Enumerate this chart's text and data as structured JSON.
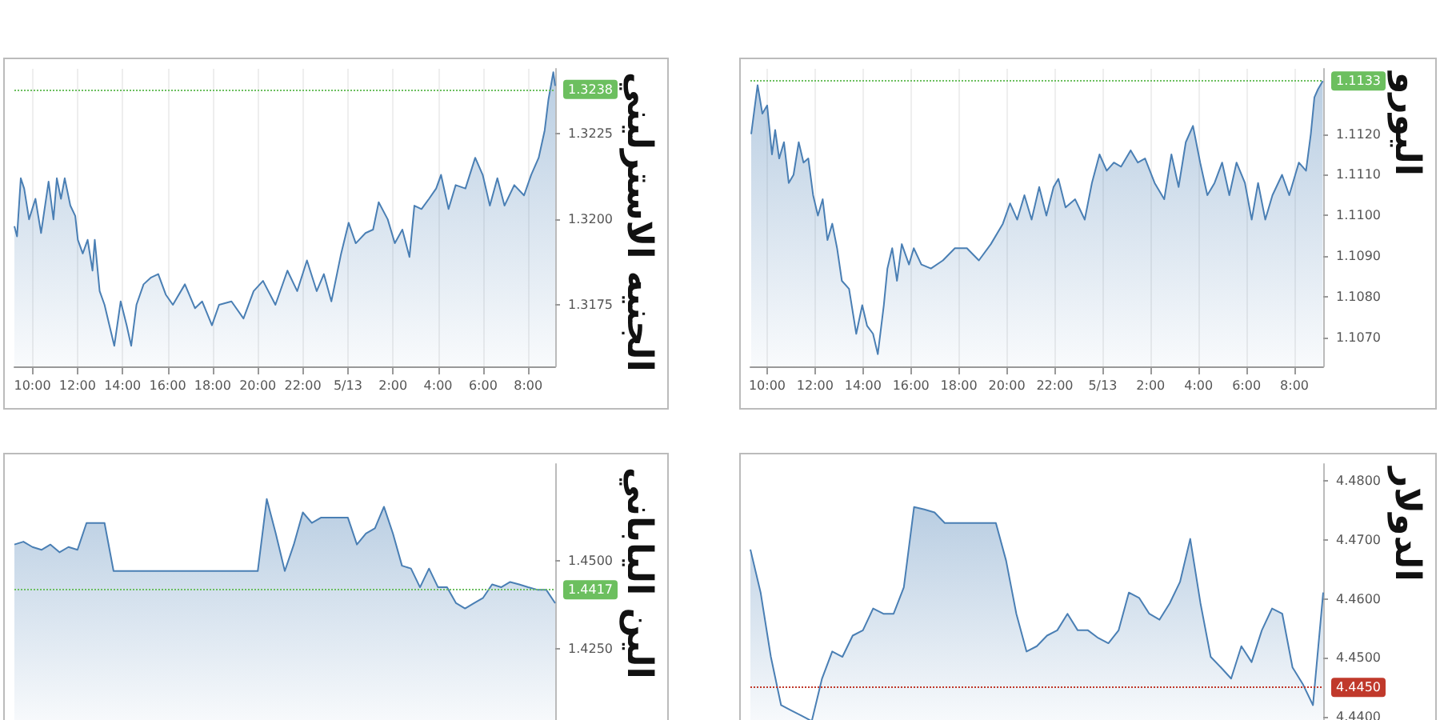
{
  "chart_data": [
    {
      "type": "area",
      "title": "الجنيه الاسترليني",
      "grid": "x",
      "marker": "none",
      "xlim": [
        "--05-12T09:12",
        "--05-13T09:12"
      ],
      "xticks": [
        {
          "value": "--05-12T10:00",
          "label": "10:00"
        },
        {
          "value": "--05-12T12:00",
          "label": "12:00"
        },
        {
          "value": "--05-12T14:00",
          "label": "14:00"
        },
        {
          "value": "--05-12T16:00",
          "label": "16:00"
        },
        {
          "value": "--05-12T18:00",
          "label": "18:00"
        },
        {
          "value": "--05-12T20:00",
          "label": "20:00"
        },
        {
          "value": "--05-12T22:00",
          "label": "22:00"
        },
        {
          "value": "--05-13T00:00",
          "label": "5/13"
        },
        {
          "value": "--05-13T02:00",
          "label": "2:00"
        },
        {
          "value": "--05-13T04:00",
          "label": "4:00"
        },
        {
          "value": "--05-13T06:00",
          "label": "6:00"
        },
        {
          "value": "--05-13T08:00",
          "label": "8:00"
        }
      ],
      "ylim": [
        1.3157,
        1.3244
      ],
      "yticks": [
        1.3175,
        {
          "value": 1.32,
          "label": "1.3200"
        },
        1.3225
      ],
      "x": [
        "--05-12T09:12",
        "--05-12T09:19",
        "--05-12T09:29",
        "--05-12T09:38",
        "--05-12T09:51",
        "--05-12T10:08",
        "--05-12T10:23",
        "--05-12T10:43",
        "--05-12T10:56",
        "--05-12T11:05",
        "--05-12T11:16",
        "--05-12T11:26",
        "--05-12T11:41",
        "--05-12T11:54",
        "--05-12T12:01",
        "--05-12T12:14",
        "--05-12T12:27",
        "--05-12T12:40",
        "--05-12T12:46",
        "--05-12T12:59",
        "--05-12T13:12",
        "--05-12T13:25",
        "--05-12T13:38",
        "--05-12T13:55",
        "--05-12T14:11",
        "--05-12T14:23",
        "--05-12T14:37",
        "--05-12T14:56",
        "--05-12T15:16",
        "--05-12T15:35",
        "--05-12T15:55",
        "--05-12T16:14",
        "--05-12T16:46",
        "--05-12T17:13",
        "--05-12T17:32",
        "--05-12T17:58",
        "--05-12T18:17",
        "--05-12T18:50",
        "--05-12T19:22",
        "--05-12T19:49",
        "--05-12T20:14",
        "--05-12T20:47",
        "--05-12T21:19",
        "--05-12T21:45",
        "--05-12T22:11",
        "--05-12T22:37",
        "--05-12T22:56",
        "--05-12T23:16",
        "--05-12T23:42",
        "--05-13T00:02",
        "--05-13T00:21",
        "--05-13T00:47",
        "--05-13T01:07",
        "--05-13T01:22",
        "--05-13T01:46",
        "--05-13T02:05",
        "--05-13T02:25",
        "--05-13T02:44",
        "--05-13T02:57",
        "--05-13T03:16",
        "--05-13T03:36",
        "--05-13T03:55",
        "--05-13T04:08",
        "--05-13T04:28",
        "--05-13T04:47",
        "--05-13T05:13",
        "--05-13T05:39",
        "--05-13T05:59",
        "--05-13T06:18",
        "--05-13T06:38",
        "--05-13T06:57",
        "--05-13T07:23",
        "--05-13T07:49",
        "--05-13T08:08",
        "--05-13T08:28",
        "--05-13T08:44",
        "--05-13T08:54",
        "--05-13T09:07",
        "--05-13T09:12"
      ],
      "series": [
        {
          "color": "#4a7fb4",
          "values": [
            1.3198,
            1.3195,
            1.3212,
            1.3209,
            1.32,
            1.3206,
            1.3196,
            1.3211,
            1.32,
            1.3212,
            1.3206,
            1.3212,
            1.3204,
            1.3201,
            1.3194,
            1.319,
            1.3194,
            1.3185,
            1.3194,
            1.3179,
            1.3175,
            1.3169,
            1.3163,
            1.3176,
            1.3169,
            1.3163,
            1.3175,
            1.3181,
            1.3183,
            1.3184,
            1.3178,
            1.3175,
            1.3181,
            1.3174,
            1.3176,
            1.3169,
            1.3175,
            1.3176,
            1.3171,
            1.3179,
            1.3182,
            1.3175,
            1.3185,
            1.3179,
            1.3188,
            1.3179,
            1.3184,
            1.3176,
            1.319,
            1.3199,
            1.3193,
            1.3196,
            1.3197,
            1.3205,
            1.32,
            1.3193,
            1.3197,
            1.3189,
            1.3204,
            1.3203,
            1.3206,
            1.3209,
            1.3213,
            1.3203,
            1.321,
            1.3209,
            1.3218,
            1.3213,
            1.3204,
            1.3212,
            1.3204,
            1.321,
            1.3207,
            1.3213,
            1.3218,
            1.3226,
            1.3235,
            1.3243,
            1.3239
          ]
        }
      ],
      "ref_lines": [
        {
          "axis": "y",
          "value": 1.3238,
          "label": "1.3238",
          "color": "#6cbf5f",
          "line_style": "dotted"
        }
      ]
    },
    {
      "type": "area",
      "title": "اليورو",
      "grid": "x",
      "marker": "none",
      "xlim": [
        "--05-12T09:18",
        "--05-13T09:12"
      ],
      "xticks": [
        {
          "value": "--05-12T10:00",
          "label": "10:00"
        },
        {
          "value": "--05-12T12:00",
          "label": "12:00"
        },
        {
          "value": "--05-12T14:00",
          "label": "14:00"
        },
        {
          "value": "--05-12T16:00",
          "label": "16:00"
        },
        {
          "value": "--05-12T18:00",
          "label": "18:00"
        },
        {
          "value": "--05-12T20:00",
          "label": "20:00"
        },
        {
          "value": "--05-12T22:00",
          "label": "22:00"
        },
        {
          "value": "--05-13T00:00",
          "label": "5/13"
        },
        {
          "value": "--05-13T02:00",
          "label": "2:00"
        },
        {
          "value": "--05-13T04:00",
          "label": "4:00"
        },
        {
          "value": "--05-13T06:00",
          "label": "6:00"
        },
        {
          "value": "--05-13T08:00",
          "label": "8:00"
        }
      ],
      "ylim": [
        1.1063,
        1.1136
      ],
      "yticks": [
        {
          "value": 1.107,
          "label": "1.1070"
        },
        {
          "value": 1.108,
          "label": "1.1080"
        },
        {
          "value": 1.109,
          "label": "1.1090"
        },
        {
          "value": 1.11,
          "label": "1.1100"
        },
        {
          "value": 1.111,
          "label": "1.1110"
        },
        {
          "value": 1.112,
          "label": "1.1120"
        }
      ],
      "x": [
        "--05-12T09:20",
        "--05-12T09:28",
        "--05-12T09:36",
        "--05-12T09:48",
        "--05-12T10:00",
        "--05-12T10:12",
        "--05-12T10:20",
        "--05-12T10:30",
        "--05-12T10:42",
        "--05-12T10:54",
        "--05-12T11:06",
        "--05-12T11:19",
        "--05-12T11:31",
        "--05-12T11:43",
        "--05-12T11:55",
        "--05-12T12:07",
        "--05-12T12:19",
        "--05-12T12:31",
        "--05-12T12:43",
        "--05-12T12:55",
        "--05-12T13:07",
        "--05-12T13:25",
        "--05-12T13:43",
        "--05-12T13:58",
        "--05-12T14:10",
        "--05-12T14:25",
        "--05-12T14:37",
        "--05-12T14:52",
        "--05-12T15:01",
        "--05-12T15:13",
        "--05-12T15:25",
        "--05-12T15:37",
        "--05-12T15:55",
        "--05-12T16:07",
        "--05-12T16:26",
        "--05-12T16:50",
        "--05-12T17:20",
        "--05-12T17:50",
        "--05-12T18:20",
        "--05-12T18:50",
        "--05-12T19:20",
        "--05-12T19:50",
        "--05-12T20:08",
        "--05-12T20:26",
        "--05-12T20:44",
        "--05-12T21:02",
        "--05-12T21:21",
        "--05-12T21:39",
        "--05-12T21:57",
        "--05-12T22:09",
        "--05-12T22:27",
        "--05-12T22:51",
        "--05-12T23:15",
        "--05-12T23:33",
        "--05-12T23:52",
        "--05-13T00:10",
        "--05-13T00:28",
        "--05-13T00:46",
        "--05-13T01:10",
        "--05-13T01:28",
        "--05-13T01:46",
        "--05-13T02:10",
        "--05-13T02:34",
        "--05-13T02:52",
        "--05-13T03:10",
        "--05-13T03:28",
        "--05-13T03:46",
        "--05-13T04:04",
        "--05-13T04:22",
        "--05-13T04:40",
        "--05-13T04:59",
        "--05-13T05:17",
        "--05-13T05:35",
        "--05-13T05:56",
        "--05-13T06:13",
        "--05-13T06:29",
        "--05-13T06:47",
        "--05-13T07:05",
        "--05-13T07:29",
        "--05-13T07:47",
        "--05-13T08:11",
        "--05-13T08:29",
        "--05-13T08:41",
        "--05-13T08:50",
        "--05-13T08:59",
        "--05-13T09:11"
      ],
      "series": [
        {
          "color": "#4a7fb4",
          "values": [
            1.112,
            1.1126,
            1.1132,
            1.1125,
            1.1127,
            1.1115,
            1.1121,
            1.1114,
            1.1118,
            1.1108,
            1.111,
            1.1118,
            1.1113,
            1.1114,
            1.1105,
            1.11,
            1.1104,
            1.1094,
            1.1098,
            1.1092,
            1.1084,
            1.1082,
            1.1071,
            1.1078,
            1.1073,
            1.1071,
            1.1066,
            1.1078,
            1.1087,
            1.1092,
            1.1084,
            1.1093,
            1.1088,
            1.1092,
            1.1088,
            1.1087,
            1.1089,
            1.1092,
            1.1092,
            1.1089,
            1.1093,
            1.1098,
            1.1103,
            1.1099,
            1.1105,
            1.1099,
            1.1107,
            1.11,
            1.1107,
            1.1109,
            1.1102,
            1.1104,
            1.1099,
            1.1108,
            1.1115,
            1.1111,
            1.1113,
            1.1112,
            1.1116,
            1.1113,
            1.1114,
            1.1108,
            1.1104,
            1.1115,
            1.1107,
            1.1118,
            1.1122,
            1.1113,
            1.1105,
            1.1108,
            1.1113,
            1.1105,
            1.1113,
            1.1108,
            1.1099,
            1.1108,
            1.1099,
            1.1105,
            1.111,
            1.1105,
            1.1113,
            1.1111,
            1.112,
            1.1129,
            1.1131,
            1.1133
          ]
        }
      ],
      "ref_lines": [
        {
          "axis": "y",
          "value": 1.1133,
          "label": "1.1133",
          "color": "#6cbf5f",
          "line_style": "dotted"
        }
      ]
    },
    {
      "type": "area",
      "title": "الين الياباني",
      "marker": "none",
      "tick_labels": "y",
      "categories": [
        null,
        null,
        null,
        null,
        null,
        null,
        null,
        null,
        null,
        null,
        null,
        null,
        null,
        null,
        null,
        null,
        null,
        null,
        null,
        null,
        null,
        null,
        null,
        null,
        null,
        null,
        null,
        null,
        null,
        null,
        null,
        null,
        null,
        null,
        null,
        null,
        null,
        null,
        null,
        null,
        null,
        null,
        null,
        null,
        null,
        null,
        null,
        null,
        null,
        null,
        null,
        null,
        null,
        null,
        null,
        null,
        null,
        null,
        null,
        null,
        null
      ],
      "ylim": [
        1.403,
        1.4773
      ],
      "yticks": [
        {
          "value": 1.425,
          "label": "1.4250"
        },
        {
          "value": 1.45,
          "label": "1.4500"
        }
      ],
      "series": [
        {
          "color": "#4a7fb4",
          "values": [
            1.4545,
            1.4553,
            1.4538,
            1.453,
            1.4545,
            1.4523,
            1.4538,
            1.453,
            1.4606,
            1.4606,
            1.4606,
            1.447,
            1.447,
            1.447,
            1.447,
            1.447,
            1.447,
            1.447,
            1.447,
            1.447,
            1.447,
            1.447,
            1.447,
            1.447,
            1.447,
            1.447,
            1.447,
            1.447,
            1.4674,
            1.4576,
            1.447,
            1.4545,
            1.4636,
            1.4606,
            1.4621,
            1.4621,
            1.4621,
            1.4621,
            1.4545,
            1.4576,
            1.4591,
            1.4652,
            1.4576,
            1.4485,
            1.4477,
            1.4424,
            1.4477,
            1.4424,
            1.4424,
            1.4379,
            1.4364,
            1.4379,
            1.4394,
            1.4432,
            1.4424,
            1.4439,
            1.4432,
            1.4424,
            1.4417,
            1.4417,
            1.4379
          ]
        }
      ],
      "ref_lines": [
        {
          "axis": "y",
          "value": 1.4417,
          "label": "1.4417",
          "color": "#6cbf5f",
          "line_style": "dotted"
        }
      ]
    },
    {
      "type": "area",
      "title": "الدولار",
      "marker": "none",
      "tick_labels": "y",
      "categories": [
        null,
        null,
        null,
        null,
        null,
        null,
        null,
        null,
        null,
        null,
        null,
        null,
        null,
        null,
        null,
        null,
        null,
        null,
        null,
        null,
        null,
        null,
        null,
        null,
        null,
        null,
        null,
        null,
        null,
        null,
        null,
        null,
        null,
        null,
        null,
        null,
        null,
        null,
        null,
        null,
        null,
        null,
        null,
        null,
        null,
        null,
        null,
        null,
        null,
        null,
        null,
        null,
        null,
        null,
        null,
        null,
        null
      ],
      "ylim": [
        4.4384,
        4.4829
      ],
      "yticks": [
        {
          "value": 4.44,
          "label": "4.4400"
        },
        {
          "value": 4.45,
          "label": "4.4500"
        },
        {
          "value": 4.46,
          "label": "4.4600"
        },
        {
          "value": 4.47,
          "label": "4.4700"
        },
        {
          "value": 4.48,
          "label": "4.4800"
        }
      ],
      "series": [
        {
          "color": "#4a7fb4",
          "values": [
            4.4684,
            4.4611,
            4.4502,
            4.442,
            4.4411,
            4.4402,
            4.4393,
            4.4465,
            4.4511,
            4.4502,
            4.4538,
            4.4547,
            4.4584,
            4.4575,
            4.4575,
            4.462,
            4.4756,
            4.4752,
            4.4747,
            4.4729,
            4.4729,
            4.4729,
            4.4729,
            4.4729,
            4.4729,
            4.4665,
            4.4575,
            4.4511,
            4.452,
            4.4538,
            4.4547,
            4.4575,
            4.4547,
            4.4547,
            4.4534,
            4.4525,
            4.4547,
            4.4611,
            4.4602,
            4.4575,
            4.4565,
            4.4593,
            4.4629,
            4.4702,
            4.4593,
            4.4502,
            4.4484,
            4.4465,
            4.452,
            4.4493,
            4.4547,
            4.4584,
            4.4575,
            4.4484,
            4.4456,
            4.442,
            4.4611
          ]
        }
      ],
      "ref_lines": [
        {
          "axis": "y",
          "value": 4.445,
          "label": "4.4450",
          "color": "#c0392b",
          "line_style": "dotted"
        }
      ]
    }
  ]
}
